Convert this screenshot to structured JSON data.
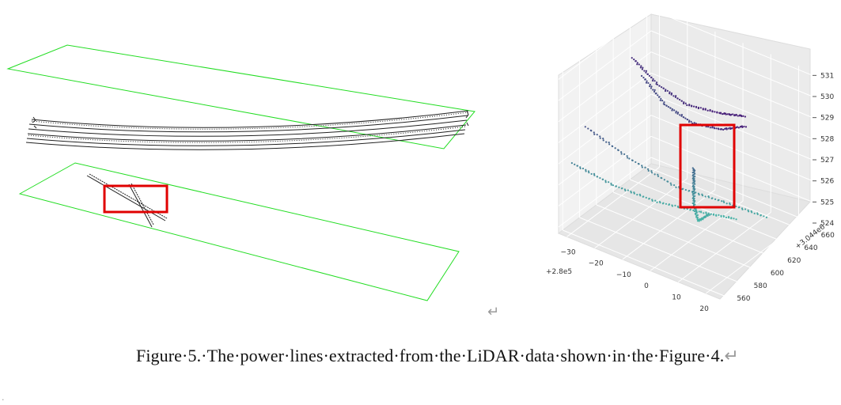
{
  "figure": {
    "caption": "Figure·5.·The·power·lines·extracted·from·the·LiDAR·data·shown·in·the·Figure·4.",
    "caption_end_mark": "↵",
    "paragraph_mark": "↵"
  },
  "left_panel": {
    "plane_color": "#22dd22",
    "line_color": "#222222",
    "highlight_color": "#e00000"
  },
  "chart_data": {
    "type": "scatter",
    "projection": "3d",
    "title": "",
    "x_axis": {
      "ticks": [
        "−30",
        "−20",
        "−10",
        "0",
        "10",
        "20"
      ],
      "offset_label": "+2.8e5",
      "range": [
        -33,
        25
      ]
    },
    "y_axis": {
      "ticks": [
        "560",
        "580",
        "600",
        "620",
        "640",
        "660"
      ],
      "offset_label": "+3.044e6",
      "range": [
        555,
        665
      ]
    },
    "z_axis": {
      "ticks": [
        "524",
        "525",
        "526",
        "527",
        "528",
        "529",
        "530",
        "531"
      ],
      "range": [
        523.7,
        531.2
      ]
    },
    "grid": true,
    "colormap": "viridis (purple → teal)",
    "highlight_color": "#e00000",
    "series": [
      {
        "points": [
          [
            -32,
            640,
            529.5
          ],
          [
            -20,
            630,
            529.2
          ],
          [
            -5,
            615,
            529.5
          ],
          [
            10,
            605,
            530.2
          ],
          [
            22,
            595,
            531.0
          ]
        ]
      },
      {
        "points": [
          [
            -30,
            645,
            528.6
          ],
          [
            -18,
            632,
            528.3
          ],
          [
            -4,
            618,
            528.6
          ],
          [
            10,
            606,
            529.4
          ],
          [
            22,
            596,
            530.5
          ]
        ]
      },
      {
        "points": [
          [
            -30,
            578,
            528.2
          ],
          [
            -18,
            590,
            527.0
          ],
          [
            -5,
            602,
            526.0
          ],
          [
            8,
            615,
            525.6
          ],
          [
            20,
            628,
            525.1
          ]
        ]
      },
      {
        "points": [
          [
            -33,
            572,
            526.5
          ],
          [
            -22,
            584,
            525.7
          ],
          [
            -10,
            596,
            525.2
          ],
          [
            2,
            608,
            525.0
          ],
          [
            12,
            618,
            524.9
          ]
        ]
      },
      {
        "points": [
          [
            2,
            600,
            527.3
          ],
          [
            2,
            600,
            526.5
          ],
          [
            2,
            600,
            525.6
          ],
          [
            3,
            602,
            524.8
          ],
          [
            6,
            605,
            525.2
          ]
        ]
      }
    ]
  }
}
